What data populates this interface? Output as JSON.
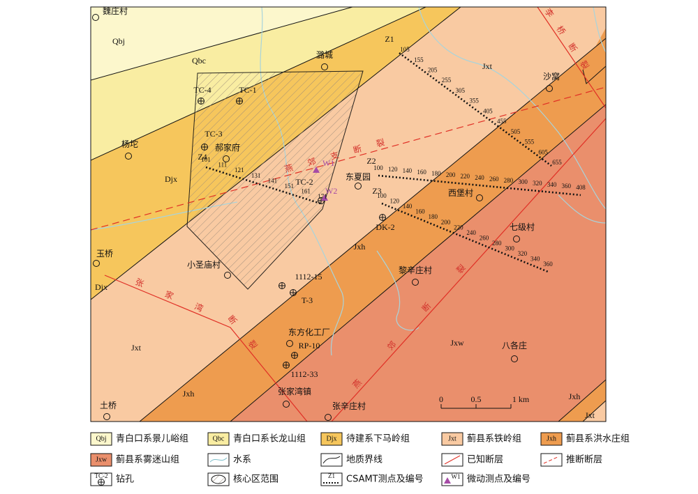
{
  "map": {
    "formation_labels": [
      "Qbj",
      "Qbc",
      "Djx",
      "Djx",
      "Jxt",
      "Jxh",
      "Jxt",
      "Jxw",
      "Jxh",
      "Jxh",
      "Jxt"
    ],
    "places": [
      "魏庄村",
      "潞城",
      "沙窝",
      "杨坨",
      "郝家府",
      "东夏园",
      "西堡村",
      "七级村",
      "玉桥",
      "小圣庙村",
      "黎辛庄村",
      "东方化工厂",
      "八各庄",
      "张家湾镇",
      "张辛庄村",
      "土桥"
    ],
    "boreholes": [
      "TC-4",
      "TC-1",
      "TC-3",
      "TC-2",
      "DK-2",
      "1112-15",
      "T-3",
      "RP-10",
      "1112-33"
    ],
    "micro_points": [
      "W1",
      "W2"
    ],
    "faults": [
      "李桥断裂",
      "燕郊支断裂",
      "张家湾断裂",
      "燕郊断裂"
    ],
    "survey_lines": [
      {
        "name": "Z1",
        "stations": [
          "105",
          "155",
          "205",
          "255",
          "305",
          "355",
          "405",
          "455",
          "505",
          "555",
          "605",
          "655"
        ]
      },
      {
        "name": "Z2",
        "stations": [
          "100",
          "120",
          "140",
          "160",
          "180",
          "200",
          "220",
          "240",
          "260",
          "280",
          "300",
          "320",
          "340",
          "360",
          "408"
        ]
      },
      {
        "name": "Z3",
        "stations": [
          "100",
          "120",
          "140",
          "160",
          "180",
          "200",
          "220",
          "240",
          "260",
          "280",
          "300",
          "320",
          "340",
          "360"
        ]
      },
      {
        "name": "Z4",
        "stations": [
          "101",
          "111",
          "121",
          "131",
          "141",
          "151",
          "161",
          "171"
        ]
      }
    ],
    "scale": [
      "0",
      "0.5",
      "1 km"
    ],
    "legend": [
      {
        "symbol": "Qbj",
        "label": "青白口系景儿峪组"
      },
      {
        "symbol": "Qbc",
        "label": "青白口系长龙山组"
      },
      {
        "symbol": "Djx",
        "label": "待建系下马岭组"
      },
      {
        "symbol": "Jxt",
        "label": "蓟县系铁岭组"
      },
      {
        "symbol": "Jxh",
        "label": "蓟县系洪水庄组"
      },
      {
        "symbol": "Jxw",
        "label": "蓟县系雾迷山组"
      },
      {
        "label": "水系"
      },
      {
        "label": "地质界线"
      },
      {
        "label": "已知断层"
      },
      {
        "label": "推断断层"
      },
      {
        "symbol": "TC-2",
        "label": "钻孔"
      },
      {
        "label": "核心区范围"
      },
      {
        "symbol": "Z1",
        "label": "CSAMT测点及编号"
      },
      {
        "symbol": "W1",
        "label": "微动测点及编号"
      }
    ]
  }
}
